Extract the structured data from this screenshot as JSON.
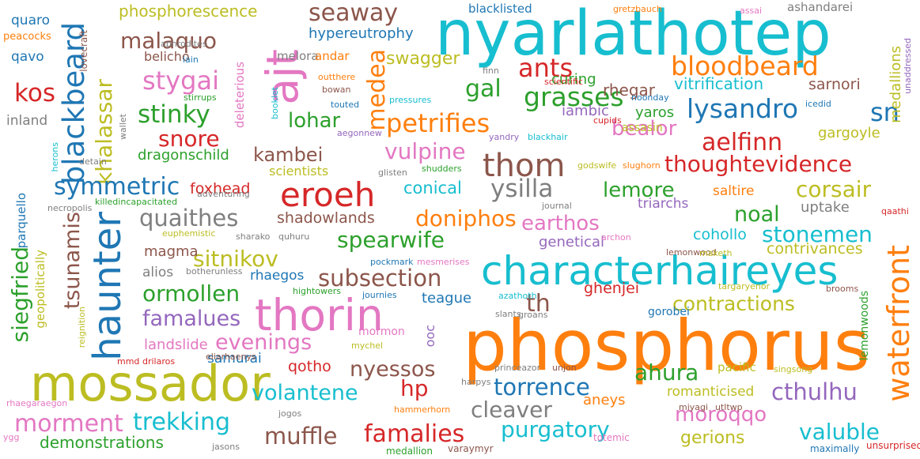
{
  "cloud": {
    "colors": {
      "blue": "#1f77b4",
      "orange": "#ff7f0e",
      "green": "#2ca02c",
      "red": "#d62728",
      "purple": "#9467bd",
      "brown": "#8c564b",
      "pink": "#e377c2",
      "gray": "#7f7f7f",
      "olive": "#bcbd22",
      "cyan": "#17becf"
    },
    "words": [
      {
        "text": "nyarlathotep",
        "color": "cyan"
      },
      {
        "text": "phosphorus",
        "color": "orange"
      },
      {
        "text": "mossador",
        "color": "olive"
      },
      {
        "text": "characterhaireyes",
        "color": "cyan"
      },
      {
        "text": "thorin",
        "color": "pink"
      },
      {
        "text": "eroeh",
        "color": "red"
      },
      {
        "text": "ajt",
        "color": "pink"
      },
      {
        "text": "haunter",
        "color": "blue"
      },
      {
        "text": "blackbeard",
        "color": "blue"
      },
      {
        "text": "waterfront",
        "color": "orange"
      },
      {
        "text": "bloodbeard",
        "color": "orange"
      },
      {
        "text": "seaway",
        "color": "brown"
      },
      {
        "text": "thom",
        "color": "brown"
      },
      {
        "text": "petrifies",
        "color": "orange"
      },
      {
        "text": "medea",
        "color": "orange"
      },
      {
        "text": "stygai",
        "color": "pink"
      },
      {
        "text": "malaquo",
        "color": "brown"
      },
      {
        "text": "ants",
        "color": "red"
      },
      {
        "text": "gal",
        "color": "green"
      },
      {
        "text": "grasses",
        "color": "green"
      },
      {
        "text": "lysandro",
        "color": "blue"
      },
      {
        "text": "sn",
        "color": "blue"
      },
      {
        "text": "stinky",
        "color": "green"
      },
      {
        "text": "kos",
        "color": "red"
      },
      {
        "text": "lohar",
        "color": "green"
      },
      {
        "text": "snore",
        "color": "red"
      },
      {
        "text": "khalassar",
        "color": "olive"
      },
      {
        "text": "kambei",
        "color": "brown"
      },
      {
        "text": "vulpine",
        "color": "pink"
      },
      {
        "text": "bealor",
        "color": "pink"
      },
      {
        "text": "aelfinn",
        "color": "red"
      },
      {
        "text": "thoughtevidence",
        "color": "red"
      },
      {
        "text": "symmetric",
        "color": "blue"
      },
      {
        "text": "ysilla",
        "color": "gray"
      },
      {
        "text": "lemore",
        "color": "green"
      },
      {
        "text": "corsair",
        "color": "olive"
      },
      {
        "text": "quaithes",
        "color": "gray"
      },
      {
        "text": "doniphos",
        "color": "orange"
      },
      {
        "text": "earthos",
        "color": "pink"
      },
      {
        "text": "noal",
        "color": "green"
      },
      {
        "text": "stonemen",
        "color": "cyan"
      },
      {
        "text": "spearwife",
        "color": "green"
      },
      {
        "text": "sitnikov",
        "color": "olive"
      },
      {
        "text": "siegfried",
        "color": "green"
      },
      {
        "text": "tsunamis",
        "color": "brown"
      },
      {
        "text": "subsection",
        "color": "brown"
      },
      {
        "text": "ormollen",
        "color": "green"
      },
      {
        "text": "famalues",
        "color": "purple"
      },
      {
        "text": "evenings",
        "color": "pink"
      },
      {
        "text": "th",
        "color": "brown"
      },
      {
        "text": "contractions",
        "color": "olive"
      },
      {
        "text": "ahura",
        "color": "green"
      },
      {
        "text": "nyessos",
        "color": "brown"
      },
      {
        "text": "hp",
        "color": "red"
      },
      {
        "text": "torrence",
        "color": "blue"
      },
      {
        "text": "cthulhu",
        "color": "purple"
      },
      {
        "text": "moroqqo",
        "color": "pink"
      },
      {
        "text": "volantene",
        "color": "cyan"
      },
      {
        "text": "cleaver",
        "color": "gray"
      },
      {
        "text": "trekking",
        "color": "cyan"
      },
      {
        "text": "morment",
        "color": "pink"
      },
      {
        "text": "muffle",
        "color": "brown"
      },
      {
        "text": "famalies",
        "color": "red"
      },
      {
        "text": "purgatory",
        "color": "cyan"
      },
      {
        "text": "valuble",
        "color": "cyan"
      },
      {
        "text": "demonstrations",
        "color": "green"
      },
      {
        "text": "gerions",
        "color": "olive"
      },
      {
        "text": "phosphorescence",
        "color": "olive"
      },
      {
        "text": "swagger",
        "color": "olive"
      },
      {
        "text": "hypereutrophy",
        "color": "blue"
      },
      {
        "text": "blacklisted",
        "color": "blue"
      },
      {
        "text": "ashandarei",
        "color": "gray"
      },
      {
        "text": "rhegar",
        "color": "brown"
      },
      {
        "text": "curing",
        "color": "green"
      },
      {
        "text": "iambic",
        "color": "purple"
      },
      {
        "text": "yaros",
        "color": "green"
      },
      {
        "text": "vitrification",
        "color": "cyan"
      },
      {
        "text": "sarnori",
        "color": "brown"
      },
      {
        "text": "medallions",
        "color": "olive"
      },
      {
        "text": "gargoyle",
        "color": "olive"
      },
      {
        "text": "conical",
        "color": "cyan"
      },
      {
        "text": "shadowlands",
        "color": "brown"
      },
      {
        "text": "uptake",
        "color": "gray"
      },
      {
        "text": "saltire",
        "color": "orange"
      },
      {
        "text": "triarchs",
        "color": "purple"
      },
      {
        "text": "genetical",
        "color": "purple"
      },
      {
        "text": "cohollo",
        "color": "cyan"
      },
      {
        "text": "contrivances",
        "color": "olive"
      },
      {
        "text": "magma",
        "color": "brown"
      },
      {
        "text": "alios",
        "color": "gray"
      },
      {
        "text": "rhaegos",
        "color": "blue"
      },
      {
        "text": "ghenjei",
        "color": "red"
      },
      {
        "text": "teague",
        "color": "blue"
      },
      {
        "text": "landslide",
        "color": "pink"
      },
      {
        "text": "samurai",
        "color": "blue"
      },
      {
        "text": "qotho",
        "color": "red"
      },
      {
        "text": "foxhead",
        "color": "red"
      },
      {
        "text": "dragonschild",
        "color": "green"
      },
      {
        "text": "scientists",
        "color": "olive"
      },
      {
        "text": "aneys",
        "color": "orange"
      },
      {
        "text": "romanticised",
        "color": "olive"
      },
      {
        "text": "quaro",
        "color": "blue"
      },
      {
        "text": "qavo",
        "color": "blue"
      },
      {
        "text": "peacocks",
        "color": "orange"
      },
      {
        "text": "belicho",
        "color": "brown"
      },
      {
        "text": "inland",
        "color": "gray"
      },
      {
        "text": "melora",
        "color": "gray"
      },
      {
        "text": "andar",
        "color": "orange"
      },
      {
        "text": "deleterious",
        "color": "pink"
      },
      {
        "text": "parquello",
        "color": "blue"
      },
      {
        "text": "geopolitically",
        "color": "olive"
      },
      {
        "text": "ooc",
        "color": "purple"
      },
      {
        "text": "mormon",
        "color": "pink"
      },
      {
        "text": "pacific",
        "color": "olive"
      },
      {
        "text": "gorobei",
        "color": "blue"
      },
      {
        "text": "lemonwoods",
        "color": "green"
      },
      {
        "text": "maximally",
        "color": "blue"
      },
      {
        "text": "unsurprised",
        "color": "red"
      },
      {
        "text": "medallion",
        "color": "green"
      },
      {
        "text": "varaymyr",
        "color": "brown"
      },
      {
        "text": "jasons",
        "color": "gray"
      },
      {
        "text": "ygg",
        "color": "pink"
      },
      {
        "text": "rhaegaraegon",
        "color": "pink"
      },
      {
        "text": "jogos",
        "color": "gray"
      },
      {
        "text": "miyagi",
        "color": "brown"
      },
      {
        "text": "utltwp",
        "color": "brown"
      },
      {
        "text": "totemic",
        "color": "pink"
      },
      {
        "text": "singsong",
        "color": "olive"
      },
      {
        "text": "brooms",
        "color": "brown"
      },
      {
        "text": "targaryenor",
        "color": "olive"
      },
      {
        "text": "azathoth",
        "color": "cyan"
      },
      {
        "text": "slants",
        "color": "gray"
      },
      {
        "text": "groans",
        "color": "gray"
      },
      {
        "text": "journies",
        "color": "blue"
      },
      {
        "text": "hightowers",
        "color": "green"
      },
      {
        "text": "pockmark",
        "color": "blue"
      },
      {
        "text": "mesmerises",
        "color": "pink"
      },
      {
        "text": "reignition",
        "color": "olive"
      },
      {
        "text": "botherunless",
        "color": "gray"
      },
      {
        "text": "mychel",
        "color": "olive"
      },
      {
        "text": "eliarhaenys",
        "color": "brown"
      },
      {
        "text": "drilaros",
        "color": "red"
      },
      {
        "text": "mmd",
        "color": "red"
      },
      {
        "text": "princeazor",
        "color": "gray"
      },
      {
        "text": "unjon",
        "color": "brown"
      },
      {
        "text": "harpys",
        "color": "gray"
      },
      {
        "text": "hammerhorn",
        "color": "orange"
      },
      {
        "text": "lovecraft",
        "color": "brown"
      },
      {
        "text": "aphrodites",
        "color": "gray"
      },
      {
        "text": "iain",
        "color": "blue"
      },
      {
        "text": "stirrups",
        "color": "green"
      },
      {
        "text": "outthere",
        "color": "orange"
      },
      {
        "text": "finn",
        "color": "gray"
      },
      {
        "text": "bowan",
        "color": "brown"
      },
      {
        "text": "booklet",
        "color": "cyan"
      },
      {
        "text": "wallet",
        "color": "gray"
      },
      {
        "text": "herons",
        "color": "cyan"
      },
      {
        "text": "detain",
        "color": "gray"
      },
      {
        "text": "necropolis",
        "color": "gray"
      },
      {
        "text": "touted",
        "color": "blue"
      },
      {
        "text": "pressures",
        "color": "cyan"
      },
      {
        "text": "scientific",
        "color": "red"
      },
      {
        "text": "aegonnew",
        "color": "purple"
      },
      {
        "text": "glisten",
        "color": "gray"
      },
      {
        "text": "shudders",
        "color": "green"
      },
      {
        "text": "yandry",
        "color": "purple"
      },
      {
        "text": "blackhair",
        "color": "cyan"
      },
      {
        "text": "cupids",
        "color": "red"
      },
      {
        "text": "assasin",
        "color": "olive"
      },
      {
        "text": "noonday",
        "color": "blue"
      },
      {
        "text": "icedid",
        "color": "blue"
      },
      {
        "text": "godswife",
        "color": "olive"
      },
      {
        "text": "slughorn",
        "color": "orange"
      },
      {
        "text": "gretzbauch",
        "color": "orange"
      },
      {
        "text": "assai",
        "color": "pink"
      },
      {
        "text": "unaddressed",
        "color": "purple"
      },
      {
        "text": "killedincapacitated",
        "color": "green"
      },
      {
        "text": "adventuring",
        "color": "gray"
      },
      {
        "text": "euphemistic",
        "color": "olive"
      },
      {
        "text": "sharako",
        "color": "gray"
      },
      {
        "text": "quhuru",
        "color": "gray"
      },
      {
        "text": "journal",
        "color": "gray"
      },
      {
        "text": "archon",
        "color": "pink"
      },
      {
        "text": "lemonwood",
        "color": "brown"
      },
      {
        "text": "maketh",
        "color": "olive"
      },
      {
        "text": "qaathi",
        "color": "red"
      }
    ]
  }
}
